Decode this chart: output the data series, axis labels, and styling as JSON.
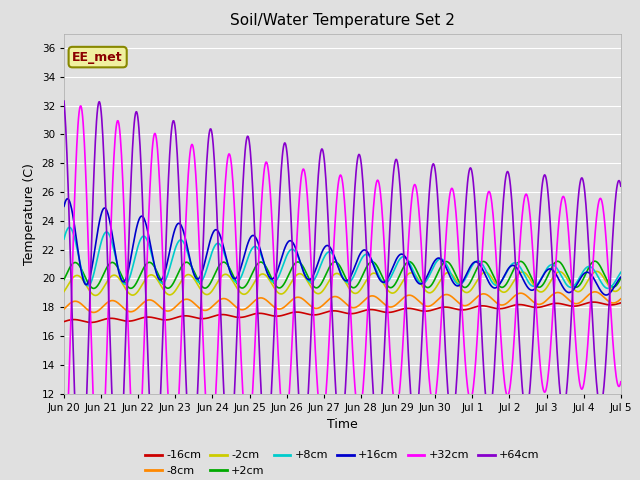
{
  "title": "Soil/Water Temperature Set 2",
  "xlabel": "Time",
  "ylabel": "Temperature (C)",
  "ylim": [
    12,
    37
  ],
  "yticks": [
    12,
    14,
    16,
    18,
    20,
    22,
    24,
    26,
    28,
    30,
    32,
    34,
    36
  ],
  "background_color": "#e0e0e0",
  "plot_bg_color": "#e0e0e0",
  "grid_color": "#ffffff",
  "series_order": [
    "-16cm",
    "-8cm",
    "-2cm",
    "+2cm",
    "+8cm",
    "+16cm",
    "+32cm",
    "+64cm"
  ],
  "series": {
    "-16cm": {
      "color": "#cc0000",
      "lw": 1.2
    },
    "-8cm": {
      "color": "#ff8800",
      "lw": 1.2
    },
    "-2cm": {
      "color": "#cccc00",
      "lw": 1.2
    },
    "+2cm": {
      "color": "#00aa00",
      "lw": 1.2
    },
    "+8cm": {
      "color": "#00cccc",
      "lw": 1.2
    },
    "+16cm": {
      "color": "#0000cc",
      "lw": 1.2
    },
    "+32cm": {
      "color": "#ff00ff",
      "lw": 1.2
    },
    "+64cm": {
      "color": "#8800cc",
      "lw": 1.2
    }
  },
  "annotation_text": "EE_met",
  "tick_labels": [
    "Jun 20",
    "Jun 21",
    "Jun 22",
    "Jun 23",
    "Jun 24",
    "Jun 25",
    "Jun 26",
    "Jun 27",
    "Jun 28",
    "Jun 29",
    "Jun 30",
    "Jul 1",
    "Jul 2",
    "Jul 3",
    "Jul 4",
    "Jul 5"
  ],
  "n_points": 960,
  "legend_row1": [
    "-16cm",
    "-8cm",
    "-2cm",
    "+2cm",
    "+8cm",
    "+16cm"
  ],
  "legend_row2": [
    "+32cm",
    "+64cm"
  ]
}
